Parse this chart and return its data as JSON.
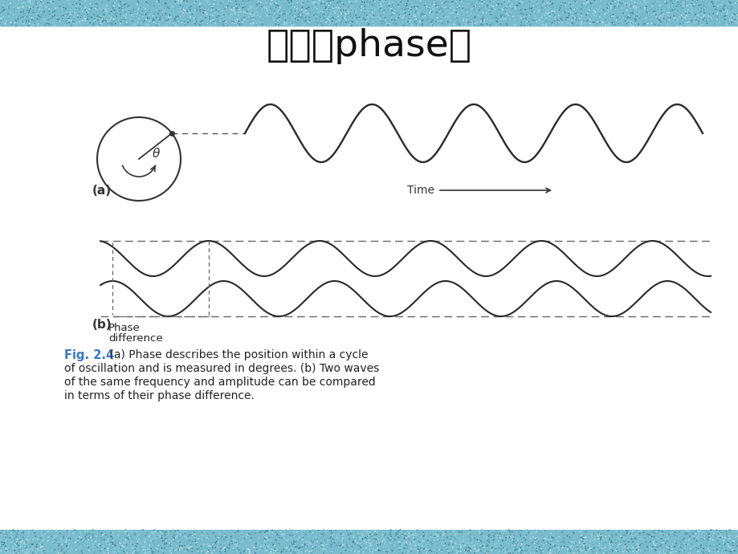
{
  "title": "相位（phase）",
  "title_fontsize": 34,
  "title_color": "#111111",
  "bg_color": "#ffffff",
  "fig_width": 9.2,
  "fig_height": 6.9,
  "wave_color": "#2a2a2a",
  "dashed_color": "#666666",
  "label_a": "(a)",
  "label_b": "(b)",
  "time_label": "Time",
  "phase_diff_label_line1": "Phase",
  "phase_diff_label_line2": "difference",
  "fig_label": "Fig. 2.4",
  "fig_label_color": "#3377cc",
  "caption_line1": " (a) Phase describes the position within a cycle",
  "caption_line2": "of oscillation and is measured in degrees. (b) Two waves",
  "caption_line3": "of the same frequency and amplitude can be compared",
  "caption_line4": "in terms of their phase difference.",
  "caption_color": "#222222",
  "caption_fontsize": 10.0,
  "bar_color_main": "#7abccc",
  "bar_color_dark": "#5a9aac",
  "bar_color_light": "#9ad0e0"
}
